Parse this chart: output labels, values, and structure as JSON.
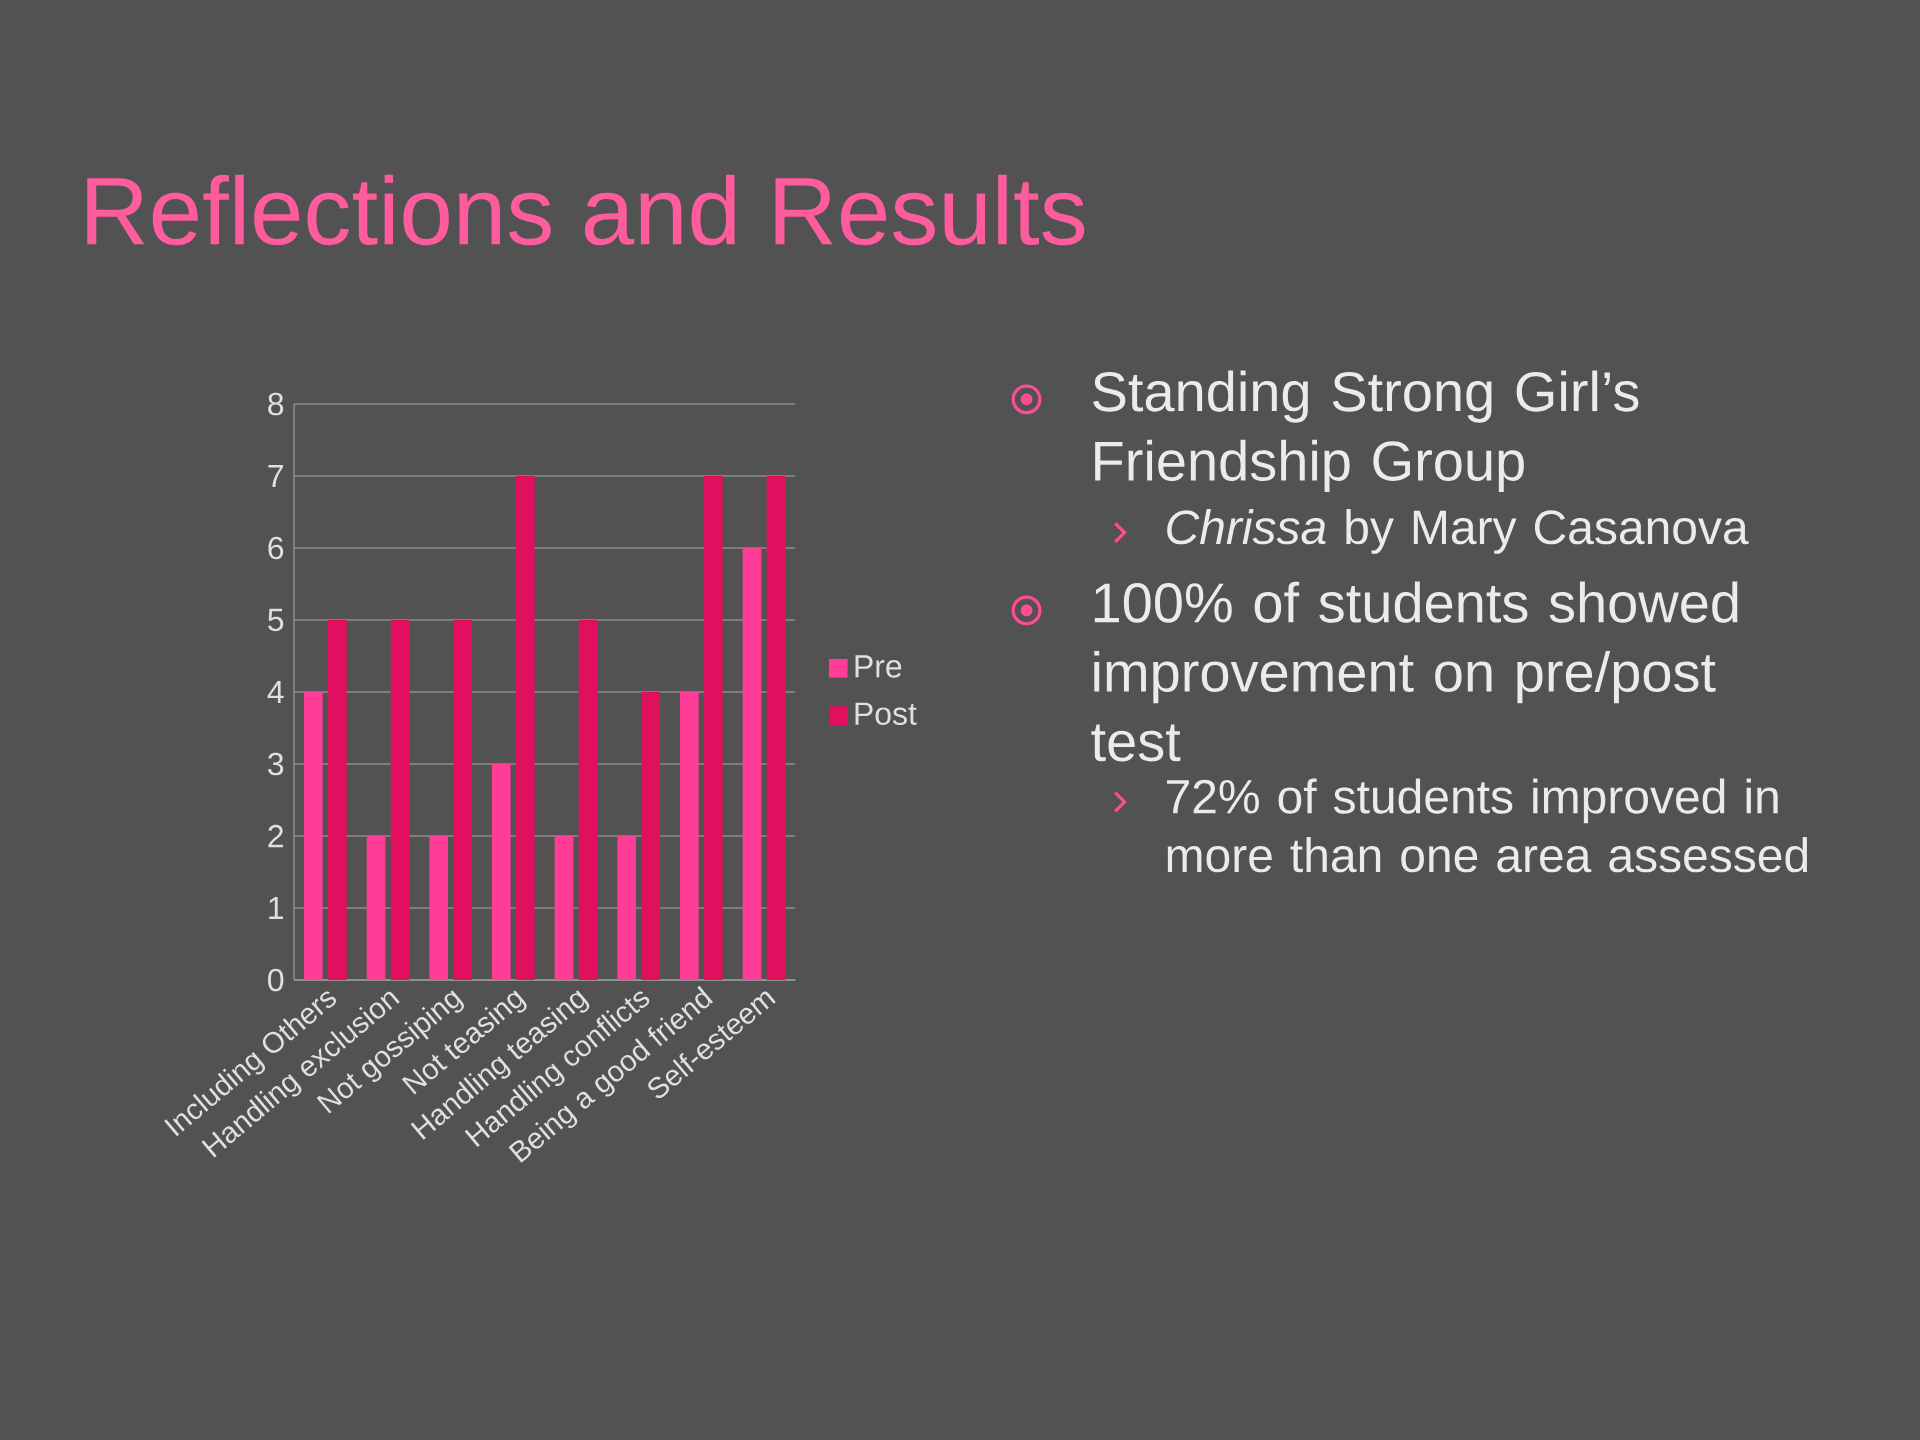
{
  "chart_data": {
    "type": "bar",
    "title": "Reflections and Results",
    "categories": [
      "Including Others",
      "Handling exclusion",
      "Not gossiping",
      "Not teasing",
      "Handling teasing",
      "Handling conflicts",
      "Being a good friend",
      "Self-esteem"
    ],
    "series": [
      {
        "name": "Pre",
        "color": "#ff3d96",
        "values": [
          4,
          2,
          2,
          3,
          2,
          2,
          4,
          6
        ]
      },
      {
        "name": "Post",
        "color": "#e0105f",
        "values": [
          5,
          5,
          5,
          7,
          5,
          4,
          7,
          7
        ]
      }
    ],
    "ylim": [
      0,
      8
    ],
    "yticks": [
      0,
      1,
      2,
      3,
      4,
      5,
      6,
      7,
      8
    ],
    "grid": "y",
    "legend": "right",
    "annotations": [
      "Standing Strong Girl’s Friendship Group",
      "*Chrissa* by Mary Casanova",
      "100% of students showed improvement on pre/post test",
      "72% of students improved in more than one area assessed"
    ]
  }
}
